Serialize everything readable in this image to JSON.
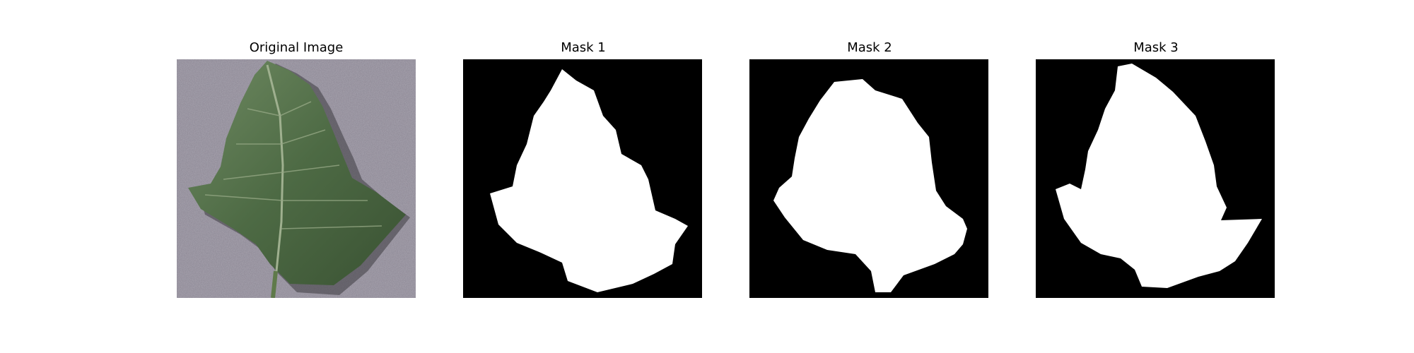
{
  "figure": {
    "panels": [
      {
        "title": "Original Image",
        "kind": "photo",
        "subject": "green leaf on grey textured background"
      },
      {
        "title": "Mask 1",
        "kind": "mask"
      },
      {
        "title": "Mask 2",
        "kind": "mask"
      },
      {
        "title": "Mask 3",
        "kind": "mask"
      }
    ]
  },
  "colors": {
    "mask_background": "#000000",
    "mask_foreground": "#ffffff",
    "photo_background": "#8a8592",
    "leaf_dark": "#3f5a36",
    "leaf_light": "#6f8a62"
  }
}
